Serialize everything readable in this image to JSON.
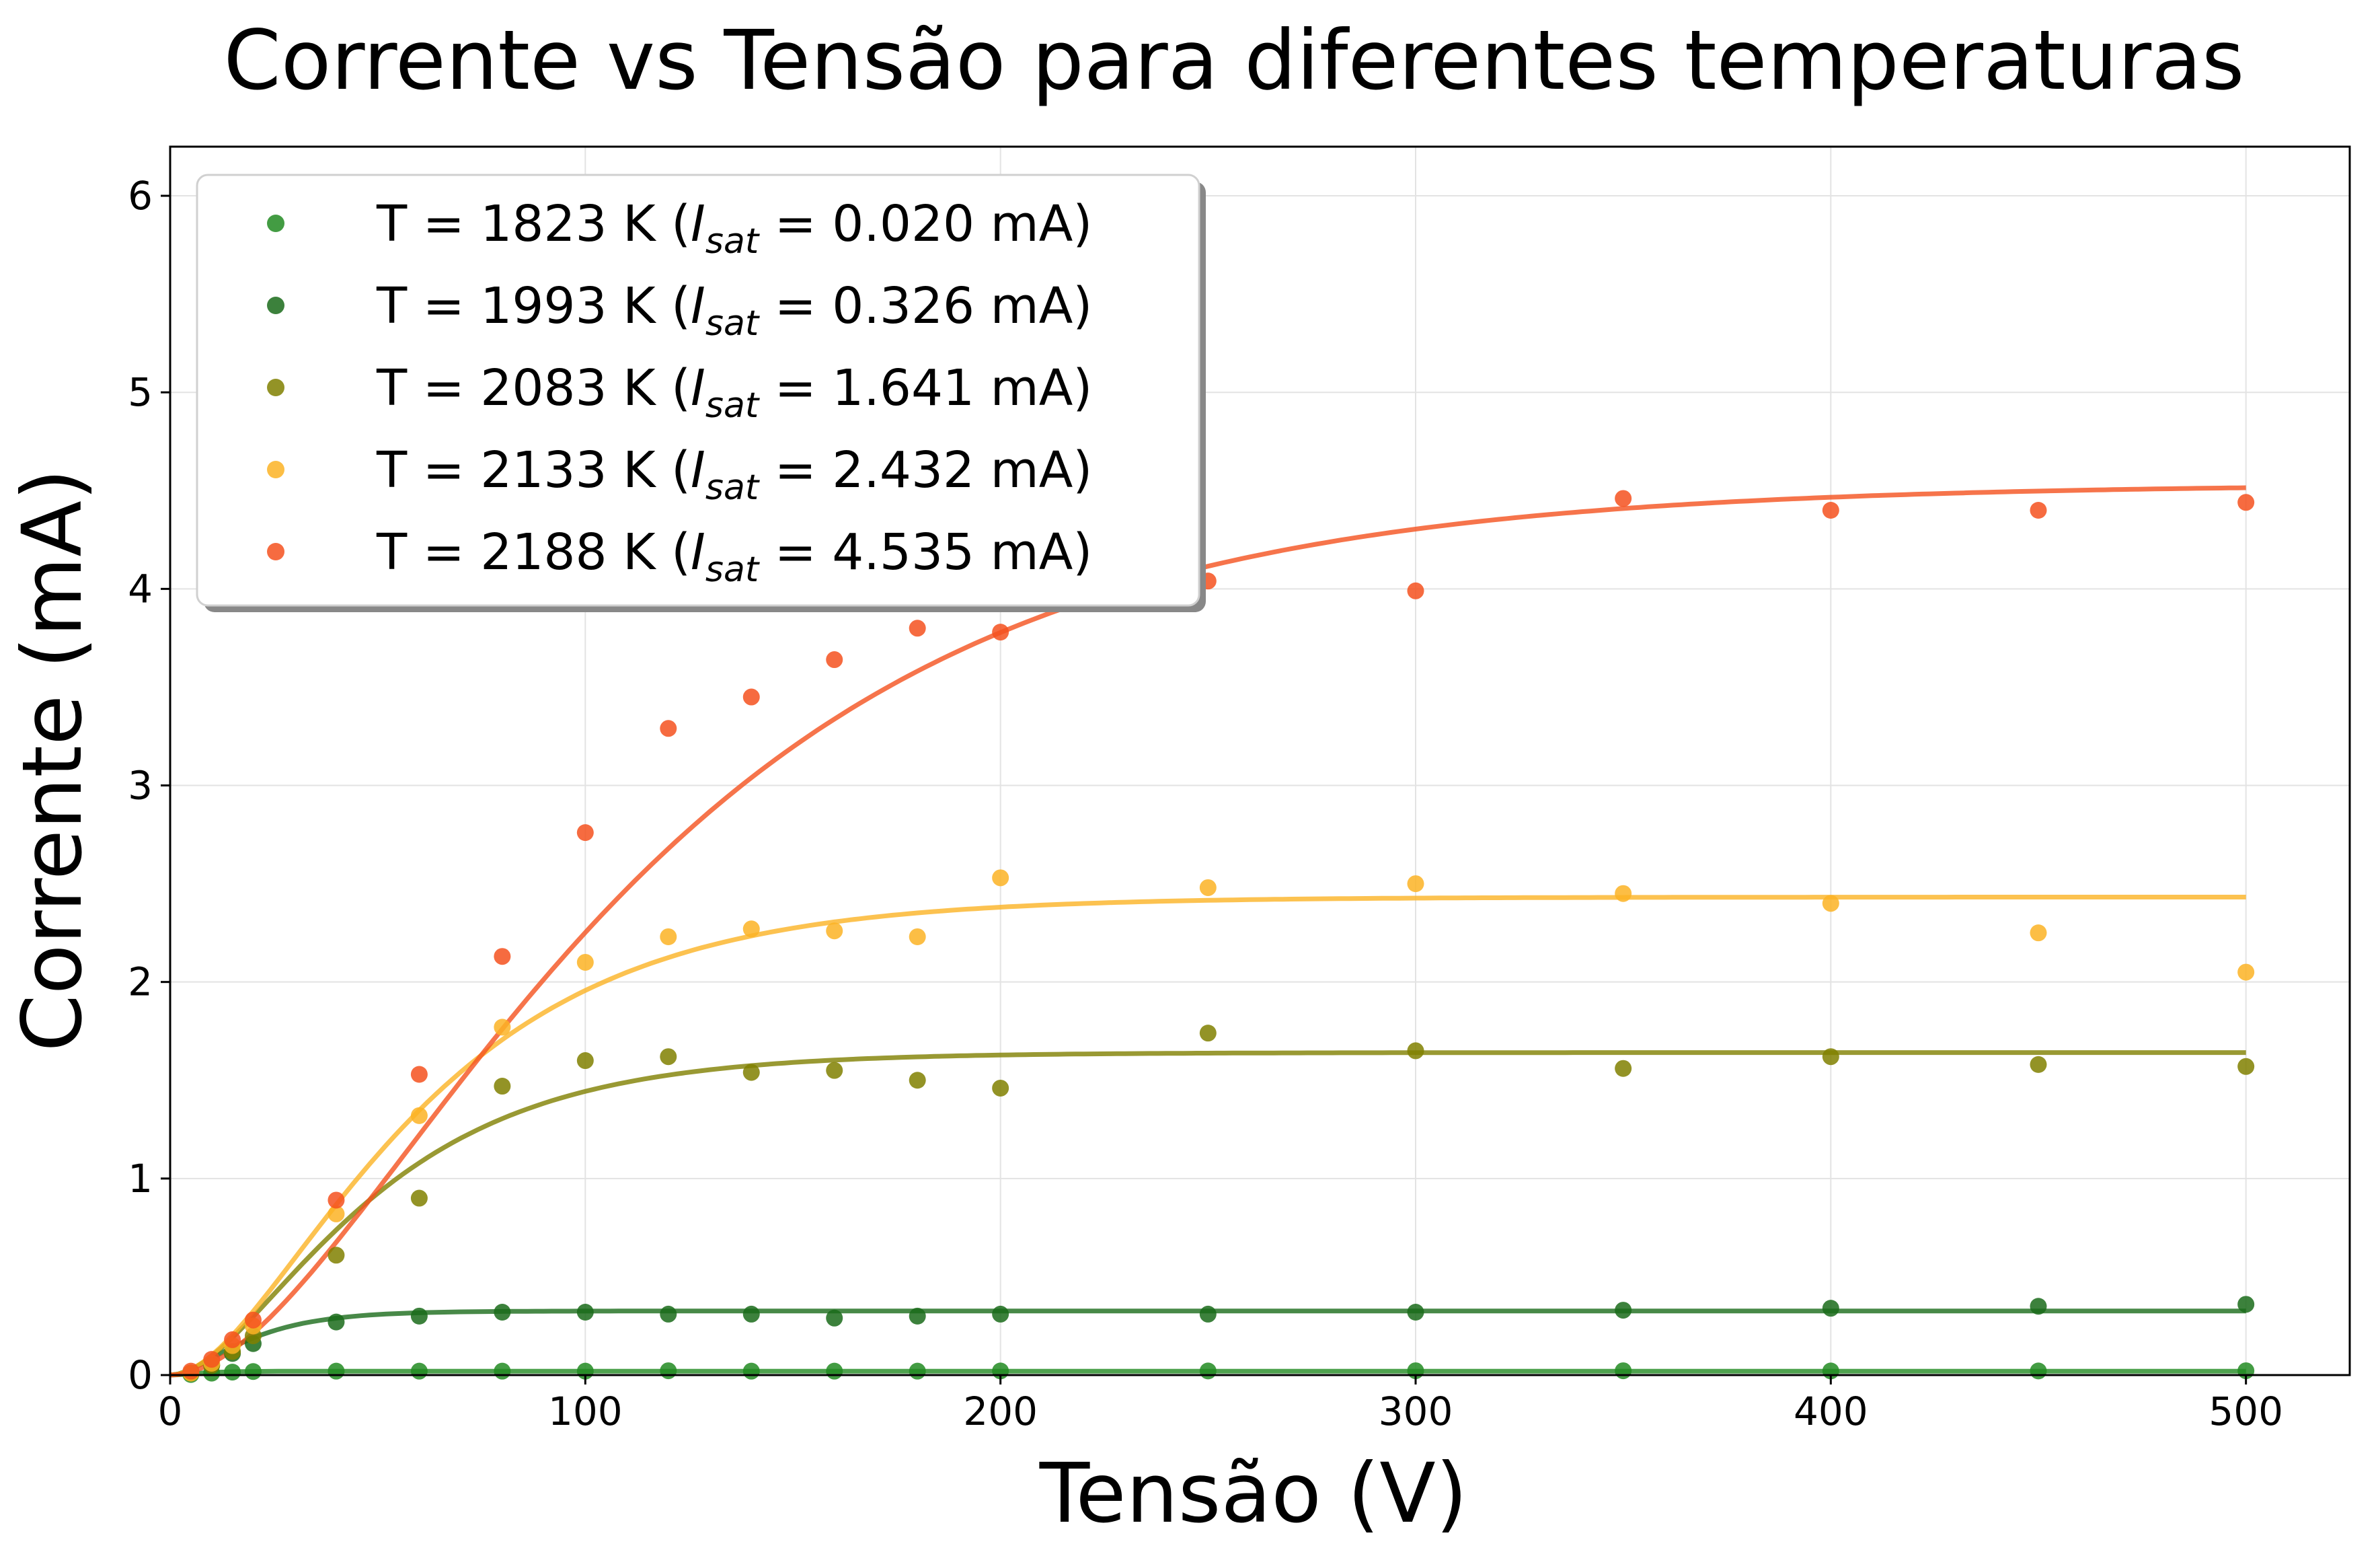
{
  "chart_data": {
    "type": "scatter",
    "title": "Corrente vs Tensão para diferentes temperaturas",
    "xlabel": "Tensão (V)",
    "ylabel": "Corrente (mA)",
    "xlim": [
      0,
      525
    ],
    "ylim": [
      0,
      6.25
    ],
    "xticks": [
      "0",
      "100",
      "200",
      "300",
      "400",
      "500"
    ],
    "yticks": [
      "0",
      "1",
      "2",
      "3",
      "4",
      "5",
      "6"
    ],
    "grid": true,
    "legend_position": "top-left",
    "fit_model": "I_sat*(1-exp(-V/V0))^2",
    "series": [
      {
        "name": "T = 1823 K (I_sat = 0.020 mA)",
        "legend_prefix": "T = 1823 K (",
        "legend_isat": "I",
        "legend_sub": "sat",
        "legend_suffix": " = 0.020 mA)",
        "color": "#228b22",
        "isat": 0.02,
        "v0": 6,
        "points": [
          [
            5,
            0.003
          ],
          [
            10,
            0.01
          ],
          [
            15,
            0.015
          ],
          [
            20,
            0.018
          ],
          [
            40,
            0.02
          ],
          [
            60,
            0.02
          ],
          [
            80,
            0.02
          ],
          [
            100,
            0.02
          ],
          [
            120,
            0.022
          ],
          [
            140,
            0.02
          ],
          [
            160,
            0.02
          ],
          [
            180,
            0.02
          ],
          [
            200,
            0.021
          ],
          [
            250,
            0.021
          ],
          [
            300,
            0.022
          ],
          [
            350,
            0.022
          ],
          [
            400,
            0.021
          ],
          [
            450,
            0.021
          ],
          [
            500,
            0.022
          ]
        ]
      },
      {
        "name": "T = 1993 K (I_sat = 0.326 mA)",
        "legend_prefix": "T = 1993 K (",
        "legend_isat": "I",
        "legend_sub": "sat",
        "legend_suffix": " = 0.326 mA)",
        "color": "#1a6b1a",
        "isat": 0.326,
        "v0": 14,
        "points": [
          [
            5,
            0.01
          ],
          [
            10,
            0.05
          ],
          [
            15,
            0.11
          ],
          [
            20,
            0.16
          ],
          [
            40,
            0.27
          ],
          [
            60,
            0.3
          ],
          [
            80,
            0.32
          ],
          [
            100,
            0.32
          ],
          [
            120,
            0.31
          ],
          [
            140,
            0.31
          ],
          [
            160,
            0.29
          ],
          [
            180,
            0.3
          ],
          [
            200,
            0.31
          ],
          [
            250,
            0.31
          ],
          [
            300,
            0.32
          ],
          [
            350,
            0.33
          ],
          [
            400,
            0.34
          ],
          [
            450,
            0.35
          ],
          [
            500,
            0.36
          ]
        ]
      },
      {
        "name": "T = 2083 K (I_sat = 1.641 mA)",
        "legend_prefix": "T = 2083 K (",
        "legend_isat": "I",
        "legend_sub": "sat",
        "legend_suffix": " = 1.641 mA)",
        "color": "#808000",
        "isat": 1.641,
        "v0": 36,
        "points": [
          [
            5,
            0.01
          ],
          [
            10,
            0.05
          ],
          [
            15,
            0.12
          ],
          [
            20,
            0.2
          ],
          [
            40,
            0.61
          ],
          [
            60,
            0.9
          ],
          [
            80,
            1.47
          ],
          [
            100,
            1.6
          ],
          [
            120,
            1.62
          ],
          [
            140,
            1.54
          ],
          [
            160,
            1.55
          ],
          [
            180,
            1.5
          ],
          [
            200,
            1.46
          ],
          [
            250,
            1.74
          ],
          [
            300,
            1.65
          ],
          [
            350,
            1.56
          ],
          [
            400,
            1.62
          ],
          [
            450,
            1.58
          ],
          [
            500,
            1.57
          ]
        ]
      },
      {
        "name": "T = 2133 K (I_sat = 2.432 mA)",
        "legend_prefix": "T = 2133 K (",
        "legend_isat": "I",
        "legend_sub": "sat",
        "legend_suffix": " = 2.432 mA)",
        "color": "#fbb324",
        "isat": 2.432,
        "v0": 44,
        "points": [
          [
            5,
            0.01
          ],
          [
            10,
            0.06
          ],
          [
            15,
            0.15
          ],
          [
            20,
            0.25
          ],
          [
            40,
            0.82
          ],
          [
            60,
            1.32
          ],
          [
            80,
            1.77
          ],
          [
            100,
            2.1
          ],
          [
            120,
            2.23
          ],
          [
            140,
            2.27
          ],
          [
            160,
            2.26
          ],
          [
            180,
            2.23
          ],
          [
            200,
            2.53
          ],
          [
            250,
            2.48
          ],
          [
            300,
            2.5
          ],
          [
            350,
            2.45
          ],
          [
            400,
            2.4
          ],
          [
            450,
            2.25
          ],
          [
            500,
            2.05
          ]
        ]
      },
      {
        "name": "T = 2188 K (I_sat = 4.535 mA)",
        "legend_prefix": "T = 2188 K (",
        "legend_isat": "I",
        "legend_sub": "sat",
        "legend_suffix": " = 4.535 mA)",
        "color": "#f4511e",
        "isat": 4.535,
        "v0": 82,
        "points": [
          [
            5,
            0.02
          ],
          [
            10,
            0.08
          ],
          [
            15,
            0.18
          ],
          [
            20,
            0.28
          ],
          [
            40,
            0.89
          ],
          [
            60,
            1.53
          ],
          [
            80,
            2.13
          ],
          [
            100,
            2.76
          ],
          [
            120,
            3.29
          ],
          [
            140,
            3.45
          ],
          [
            160,
            3.64
          ],
          [
            180,
            3.8
          ],
          [
            200,
            3.78
          ],
          [
            250,
            4.04
          ],
          [
            300,
            3.99
          ],
          [
            350,
            4.46
          ],
          [
            400,
            4.4
          ],
          [
            450,
            4.4
          ],
          [
            500,
            4.44
          ]
        ]
      }
    ]
  }
}
